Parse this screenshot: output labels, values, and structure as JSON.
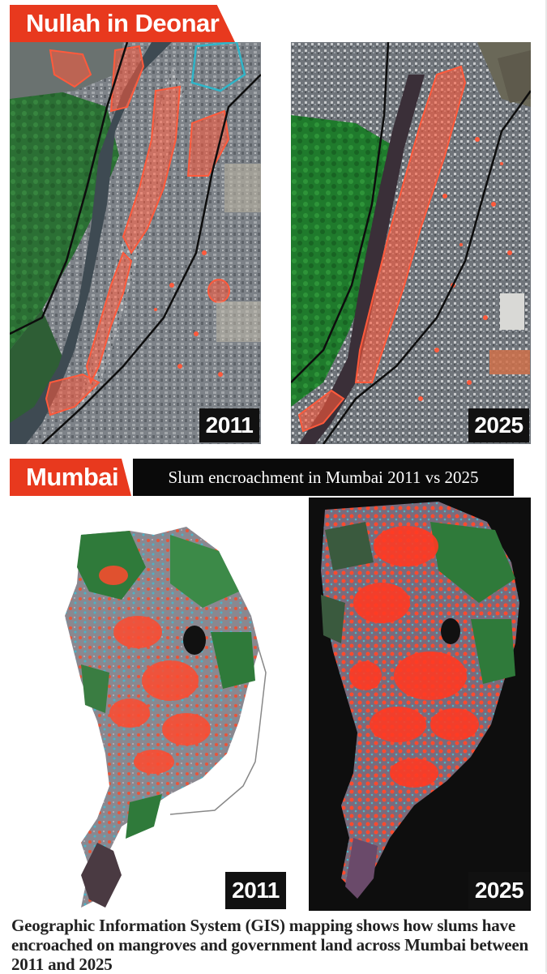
{
  "nullah_section": {
    "title": "Nullah in Deonar",
    "panel_left_year": "2011",
    "panel_right_year": "2025"
  },
  "mumbai_section": {
    "title": "Mumbai",
    "subtitle": "Slum encroachment in Mumbai 2011 vs 2025",
    "panel_left_year": "2011",
    "panel_right_year": "2025"
  },
  "caption": "Geographic Information System (GIS) mapping shows how slums have encroached on mangroves and government land across Mumbai between 2011 and 2025",
  "colors": {
    "accent": "#e8391e",
    "encroachment_overlay": "#ff5a3c",
    "mangrove_green": "#2f7a3a",
    "water": "#3e4a52",
    "urban_gray": "#8a8f95",
    "badge_bg": "#111111"
  }
}
